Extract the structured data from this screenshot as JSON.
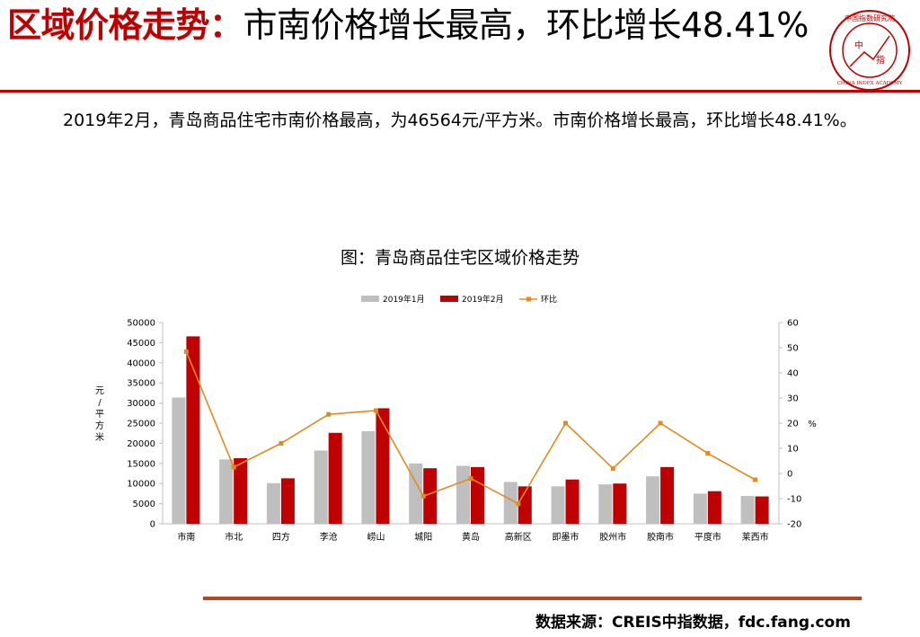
{
  "header": {
    "title_red": "区域价格走势：",
    "title_rest": "市南价格增长最高，环比增长48.41%"
  },
  "logo": {
    "top_text": "中国指数研究院",
    "center_top": "中",
    "center_bottom": "指",
    "bottom_text": "CHINA INDEX ACADEMY"
  },
  "summary": "2019年2月，青岛商品住宅市南价格最高，为46564元/平方米。市南价格增长最高，环比增长48.41%。",
  "chart_title": "图：青岛商品住宅区域价格走势",
  "source": "数据来源：CREIS中指数据，fdc.fang.com",
  "colors": {
    "accent": "#c00000",
    "series1": "#bfbfbf",
    "series2": "#c00000",
    "line": "#e38a1f",
    "rule": "#b9471d"
  },
  "chart_data": {
    "type": "bar",
    "categories": [
      "市南",
      "市北",
      "四方",
      "李沧",
      "崂山",
      "城阳",
      "黄岛",
      "高新区",
      "即墨市",
      "胶州市",
      "胶南市",
      "平度市",
      "莱西市"
    ],
    "series": [
      {
        "name": "2019年1月",
        "type": "bar",
        "axis": "left",
        "values": [
          31380,
          16000,
          10100,
          18200,
          23000,
          15000,
          14400,
          10400,
          9300,
          9800,
          11800,
          7500,
          6900
        ]
      },
      {
        "name": "2019年2月",
        "type": "bar",
        "axis": "left",
        "values": [
          46564,
          16300,
          11300,
          22600,
          28700,
          13800,
          14100,
          9300,
          11000,
          10000,
          14100,
          8100,
          6800
        ]
      },
      {
        "name": "环比",
        "type": "line",
        "axis": "right",
        "values": [
          48.41,
          2.5,
          12,
          23.5,
          25,
          -9,
          -2,
          -12,
          20,
          2,
          20,
          8,
          -2.5
        ]
      }
    ],
    "yleft": {
      "label": "元/平方米",
      "lim": [
        0,
        50000
      ],
      "ticks": [
        "0",
        "5000",
        "10000",
        "15000",
        "20000",
        "25000",
        "30000",
        "35000",
        "40000",
        "45000",
        "50000"
      ]
    },
    "yright": {
      "label": "%",
      "lim": [
        -20,
        60
      ],
      "ticks": [
        "-20",
        "-10",
        "0",
        "10",
        "20",
        "30",
        "40",
        "50",
        "60"
      ]
    },
    "legend": "top",
    "grid": false
  }
}
